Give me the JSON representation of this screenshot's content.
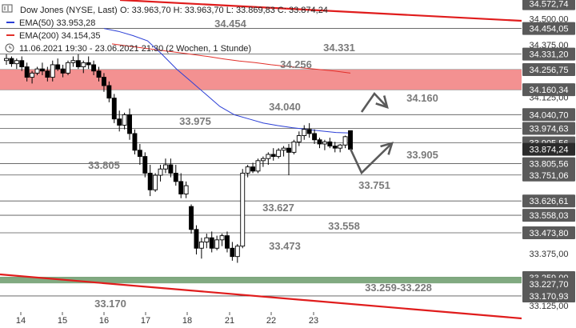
{
  "header": {
    "title": "Dow Jones (NYSE, Last)",
    "ohlc": "O: 33.963,70  H: 33.963,70  L: 33.869,83  C: 33.874,24",
    "ema50": "EMA(50)  33.953,28",
    "ema200": "EMA(200)  34.154,35",
    "range": "11.06.2021 19:30 - 23.06.2021 21:30   (2 Wochen, 1 Stunde)"
  },
  "colors": {
    "candle_up": "#ffffff",
    "candle_down": "#000000",
    "ema50": "#2b3fd6",
    "ema200": "#e2302a",
    "resistance_zone": "#f28b8b",
    "support_zone": "#7aa57a",
    "trend_line": "#e01c1c",
    "price_tag": "#5a5a5a"
  },
  "chart_data": {
    "type": "candlestick",
    "x_ticks": [
      "14",
      "15",
      "16",
      "17",
      "18",
      "21",
      "22",
      "23"
    ],
    "y_ticks": [
      "34.500,00",
      "34.375,00",
      "34.125,00",
      "33.375,00",
      "33.125,00"
    ],
    "price_scale_labels": [
      "34.572,74",
      "34.454,05",
      "34.331,20",
      "34.256,75",
      "34.160,34",
      "34.040,70",
      "33.974,63",
      "33.905,56",
      "33.874,24",
      "33.805,56",
      "33.751,06",
      "33.626,61",
      "33.558,03",
      "33.473,80",
      "33.259,00",
      "33.227,70",
      "33.170,93"
    ],
    "levels": [
      {
        "label": "34.454",
        "value": 34454.05
      },
      {
        "label": "34.331",
        "value": 34331.2
      },
      {
        "label": "34.256",
        "value": 34256.75
      },
      {
        "label": "34.160",
        "value": 34160.34
      },
      {
        "label": "34.040",
        "value": 34040.7
      },
      {
        "label": "33.975",
        "value": 33974.63
      },
      {
        "label": "33.905",
        "value": 33905.56
      },
      {
        "label": "33.805",
        "value": 33805.56
      },
      {
        "label": "33.751",
        "value": 33751.06
      },
      {
        "label": "33.627",
        "value": 33626.61
      },
      {
        "label": "33.558",
        "value": 33558.03
      },
      {
        "label": "33.473",
        "value": 33473.8
      },
      {
        "label": "33.259-33.228",
        "value": 33259.0
      },
      {
        "label": "33.170",
        "value": 33170.93
      }
    ],
    "last_price": 33874.24,
    "resistance_zone": [
      34160.34,
      34256.75
    ],
    "support_zone": [
      33227.7,
      33259.0
    ],
    "ema50": [
      34454,
      34440,
      34420,
      34395,
      34330,
      34260,
      34200,
      34140,
      34080,
      34040,
      34020,
      34000,
      33988,
      33978,
      33970,
      33962,
      33955,
      33953
    ],
    "ema200": [
      34380,
      34370,
      34360,
      34350,
      34340,
      34330,
      34320,
      34308,
      34298,
      34290,
      34280,
      34272,
      34265,
      34258,
      34250,
      34240
    ],
    "candles": [
      [
        34300,
        34330,
        34280,
        34310
      ],
      [
        34310,
        34320,
        34270,
        34285
      ],
      [
        34285,
        34310,
        34260,
        34300
      ],
      [
        34300,
        34320,
        34250,
        34270
      ],
      [
        34270,
        34290,
        34200,
        34220
      ],
      [
        34220,
        34250,
        34190,
        34240
      ],
      [
        34240,
        34270,
        34230,
        34260
      ],
      [
        34260,
        34290,
        34230,
        34250
      ],
      [
        34250,
        34270,
        34200,
        34220
      ],
      [
        34220,
        34300,
        34200,
        34280
      ],
      [
        34280,
        34310,
        34250,
        34260
      ],
      [
        34260,
        34280,
        34220,
        34240
      ],
      [
        34240,
        34300,
        34230,
        34290
      ],
      [
        34290,
        34320,
        34270,
        34300
      ],
      [
        34300,
        34330,
        34260,
        34270
      ],
      [
        34270,
        34300,
        34240,
        34290
      ],
      [
        34290,
        34320,
        34260,
        34280
      ],
      [
        34280,
        34300,
        34230,
        34250
      ],
      [
        34250,
        34270,
        34200,
        34220
      ],
      [
        34220,
        34240,
        34150,
        34180
      ],
      [
        34180,
        34200,
        34100,
        34120
      ],
      [
        34120,
        34140,
        34000,
        34020
      ],
      [
        34020,
        34060,
        33960,
        33990
      ],
      [
        33990,
        34050,
        33970,
        34040
      ],
      [
        34040,
        34070,
        33920,
        33950
      ],
      [
        33950,
        33970,
        33850,
        33870
      ],
      [
        33870,
        33900,
        33800,
        33840
      ],
      [
        33840,
        33860,
        33740,
        33760
      ],
      [
        33760,
        33800,
        33650,
        33680
      ],
      [
        33680,
        33760,
        33670,
        33750
      ],
      [
        33750,
        33800,
        33720,
        33780
      ],
      [
        33780,
        33830,
        33760,
        33800
      ],
      [
        33800,
        33830,
        33740,
        33760
      ],
      [
        33760,
        33800,
        33700,
        33720
      ],
      [
        33720,
        33760,
        33640,
        33660
      ],
      [
        33660,
        33720,
        33640,
        33700
      ],
      [
        33600,
        33610,
        33470,
        33490
      ],
      [
        33490,
        33510,
        33370,
        33400
      ],
      [
        33400,
        33450,
        33350,
        33430
      ],
      [
        33430,
        33470,
        33400,
        33450
      ],
      [
        33450,
        33480,
        33380,
        33400
      ],
      [
        33400,
        33460,
        33390,
        33440
      ],
      [
        33440,
        33470,
        33410,
        33460
      ],
      [
        33460,
        33480,
        33380,
        33400
      ],
      [
        33400,
        33430,
        33340,
        33360
      ],
      [
        33360,
        33420,
        33330,
        33410
      ],
      [
        33410,
        33780,
        33400,
        33760
      ],
      [
        33760,
        33800,
        33740,
        33790
      ],
      [
        33790,
        33810,
        33760,
        33770
      ],
      [
        33770,
        33830,
        33760,
        33820
      ],
      [
        33820,
        33840,
        33790,
        33830
      ],
      [
        33830,
        33860,
        33800,
        33850
      ],
      [
        33850,
        33880,
        33820,
        33840
      ],
      [
        33840,
        33880,
        33830,
        33870
      ],
      [
        33870,
        33890,
        33840,
        33880
      ],
      [
        33880,
        33900,
        33750,
        33860
      ],
      [
        33860,
        33920,
        33850,
        33910
      ],
      [
        33910,
        33960,
        33890,
        33940
      ],
      [
        33940,
        33990,
        33920,
        33970
      ],
      [
        33970,
        34000,
        33930,
        33950
      ],
      [
        33950,
        33970,
        33900,
        33920
      ],
      [
        33920,
        33930,
        33880,
        33900
      ],
      [
        33900,
        33920,
        33870,
        33910
      ],
      [
        33910,
        33930,
        33880,
        33890
      ],
      [
        33890,
        33910,
        33860,
        33880
      ],
      [
        33880,
        33900,
        33860,
        33895
      ],
      [
        33895,
        33940,
        33880,
        33935
      ],
      [
        33963.7,
        33963.7,
        33869.83,
        33874.24
      ]
    ],
    "projection_up": [
      [
        33874.24
      ],
      [
        34160.34
      ]
    ],
    "projection_down": [
      [
        33874.24
      ],
      [
        33751.06
      ],
      [
        33905.56
      ]
    ]
  }
}
